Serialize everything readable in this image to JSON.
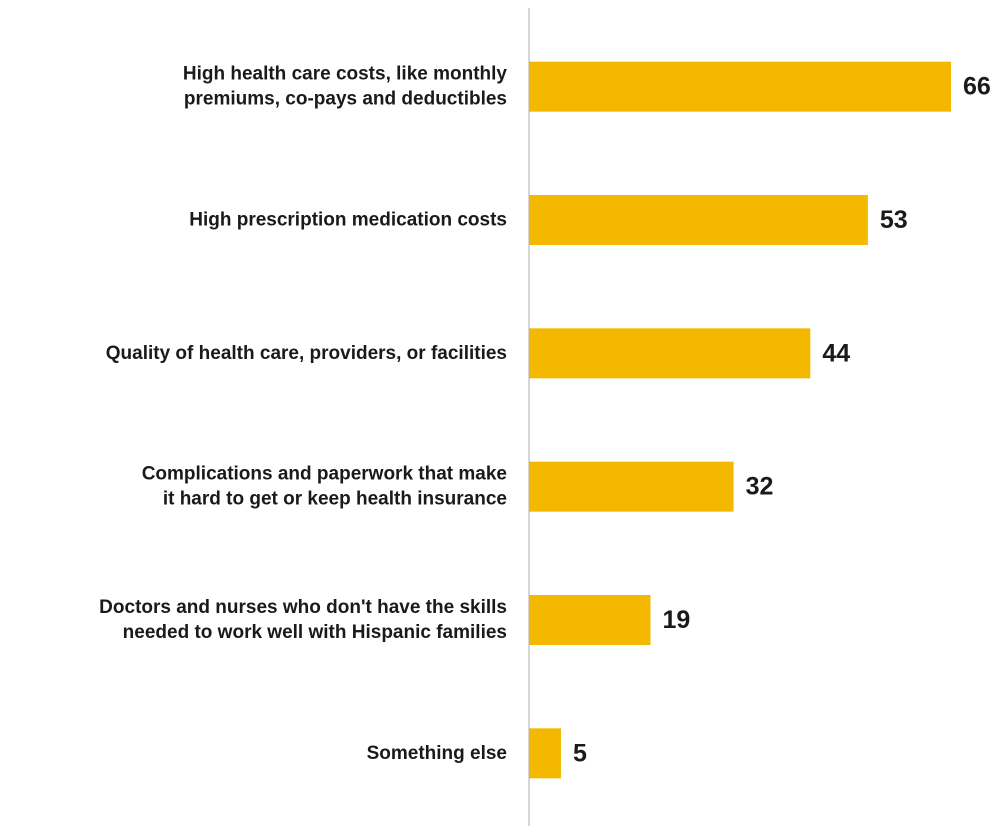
{
  "chart_data": {
    "type": "bar",
    "orientation": "horizontal",
    "title": "",
    "xlabel": "",
    "ylabel": "",
    "categories": [
      [
        "High health care costs, like monthly",
        "premiums, co-pays and deductibles"
      ],
      [
        "High prescription medication costs"
      ],
      [
        "Quality of health care, providers, or facilities"
      ],
      [
        "Complications and paperwork that make",
        "it hard to get or keep health insurance"
      ],
      [
        "Doctors and nurses who don't have the skills",
        "needed to work well with Hispanic families"
      ],
      [
        "Something else"
      ]
    ],
    "values": [
      66,
      53,
      44,
      32,
      19,
      5
    ],
    "xlim": [
      0,
      70
    ],
    "bar_color": "#F5B800",
    "axis_color": "#c8c8c8",
    "grid": false,
    "legend": "none",
    "data_labels": true
  }
}
